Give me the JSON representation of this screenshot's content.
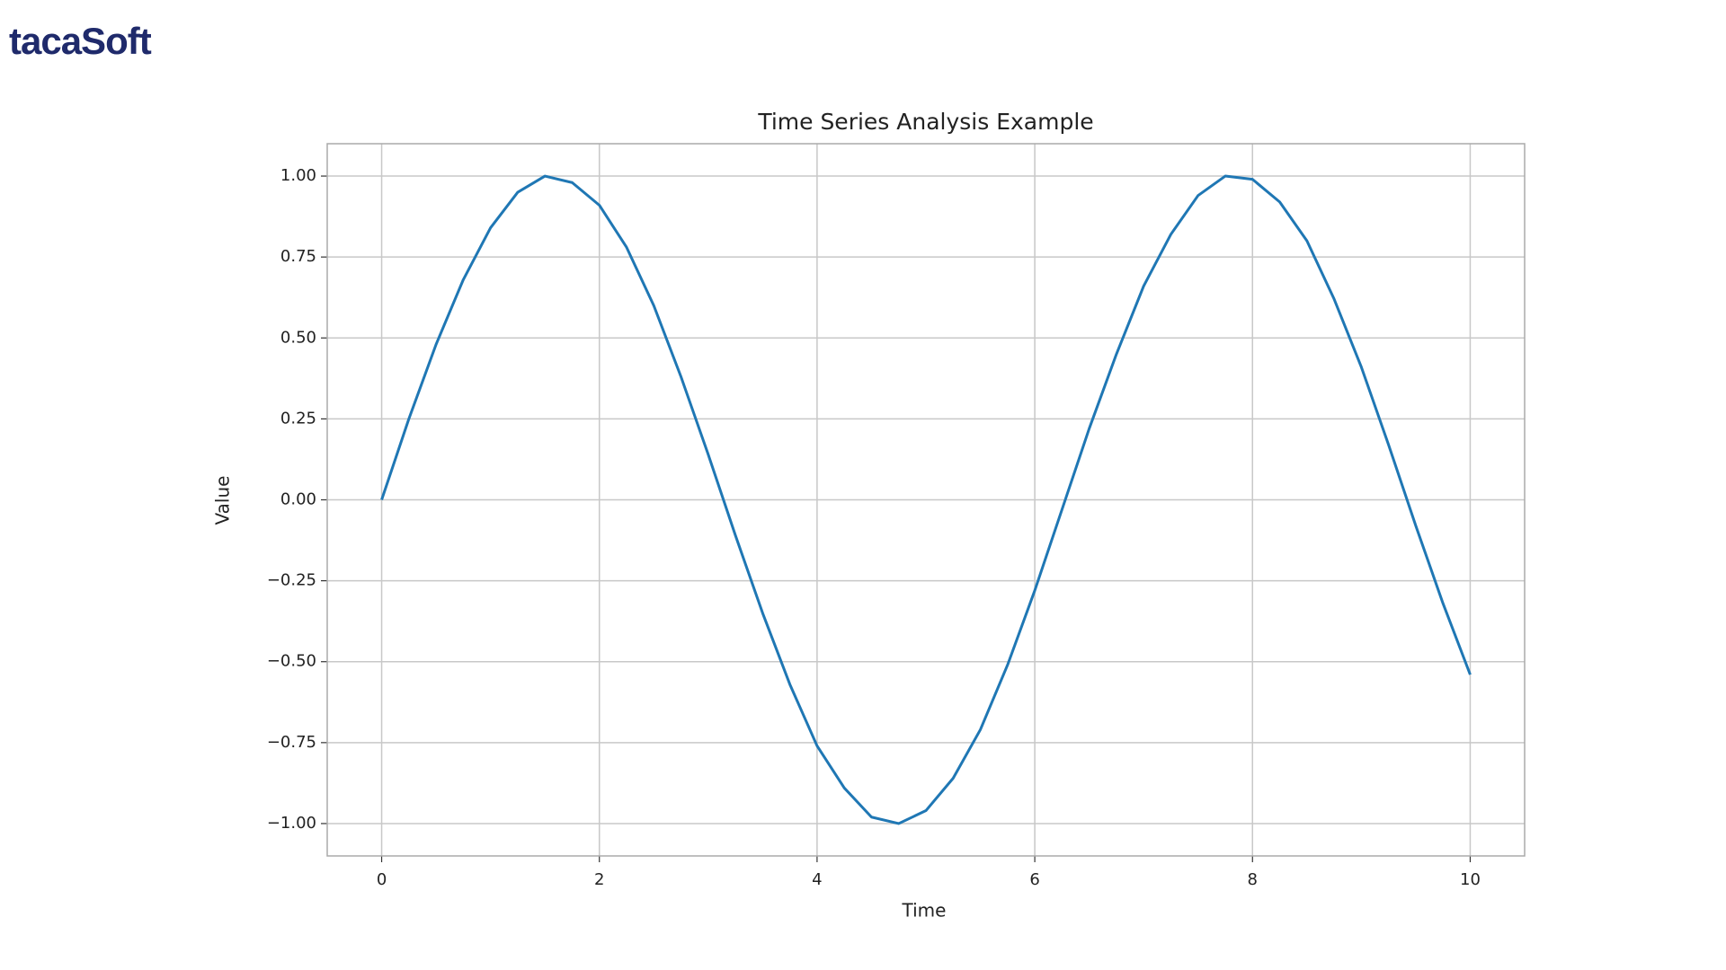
{
  "logo": "tacaSoft",
  "chart_data": {
    "type": "line",
    "title": "Time Series Analysis Example",
    "x_label": "Time",
    "y_label": "Value",
    "x": [
      0,
      0.25,
      0.5,
      0.75,
      1,
      1.25,
      1.5,
      1.75,
      2,
      2.25,
      2.5,
      2.75,
      3,
      3.25,
      3.5,
      3.75,
      4,
      4.25,
      4.5,
      4.75,
      5,
      5.25,
      5.5,
      5.75,
      6,
      6.25,
      6.5,
      6.75,
      7,
      7.25,
      7.5,
      7.75,
      8,
      8.25,
      8.5,
      8.75,
      9,
      9.25,
      9.5,
      9.75,
      10
    ],
    "series": [
      {
        "color": "#1f77b4",
        "values": [
          0,
          0.25,
          0.48,
          0.68,
          0.84,
          0.95,
          1.0,
          0.98,
          0.91,
          0.78,
          0.6,
          0.38,
          0.14,
          -0.11,
          -0.35,
          -0.57,
          -0.76,
          -0.89,
          -0.98,
          -1.0,
          -0.96,
          -0.86,
          -0.71,
          -0.51,
          -0.28,
          -0.03,
          0.22,
          0.45,
          0.66,
          0.82,
          0.94,
          1.0,
          0.99,
          0.92,
          0.8,
          0.62,
          0.41,
          0.17,
          -0.08,
          -0.32,
          -0.54
        ]
      }
    ],
    "xlim": [
      -0.5,
      10.5
    ],
    "ylim": [
      -1.1,
      1.1
    ],
    "xticks": [
      0,
      2,
      4,
      6,
      8,
      10
    ],
    "yticks": [
      {
        "value": -1,
        "label": "−1.00"
      },
      {
        "value": -0.75,
        "label": "−0.75"
      },
      {
        "value": -0.5,
        "label": "−0.50"
      },
      {
        "value": -0.25,
        "label": "−0.25"
      },
      {
        "value": 0,
        "label": "0.00"
      },
      0.25,
      {
        "value": 0.5,
        "label": "0.50"
      },
      0.75,
      {
        "value": 1,
        "label": "1.00"
      }
    ],
    "grid": true
  }
}
